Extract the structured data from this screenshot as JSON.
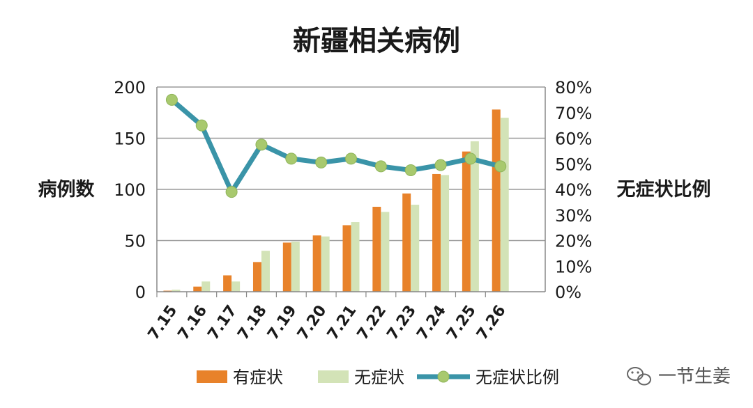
{
  "chart_data": {
    "type": "bar",
    "title": "新疆相关病例",
    "categories": [
      "7.15",
      "7.16",
      "7.17",
      "7.18",
      "7.19",
      "7.20",
      "7.21",
      "7.22",
      "7.23",
      "7.24",
      "7.25",
      "7.26"
    ],
    "series": [
      {
        "name": "有症状",
        "type": "bar",
        "axis": "left",
        "color": "#e8822a",
        "values": [
          1,
          5,
          16,
          29,
          48,
          55,
          65,
          83,
          96,
          115,
          137,
          178
        ]
      },
      {
        "name": "无症状",
        "type": "bar",
        "axis": "left",
        "color": "#d3e3b7",
        "values": [
          2,
          10,
          10,
          40,
          49,
          54,
          68,
          78,
          85,
          114,
          147,
          170
        ]
      },
      {
        "name": "无症状比例",
        "type": "line",
        "axis": "right",
        "color": "#3a94a8",
        "marker_color": "#a8c96e",
        "values": [
          0.75,
          0.65,
          0.39,
          0.575,
          0.52,
          0.505,
          0.52,
          0.49,
          0.475,
          0.495,
          0.52,
          0.49
        ]
      }
    ],
    "ylabel": "病例数",
    "y2label": "无症状比例",
    "ylim": [
      0,
      200
    ],
    "y2lim": [
      0,
      0.8
    ],
    "yticks": [
      "0",
      "50",
      "100",
      "150",
      "200"
    ],
    "y2ticks": [
      "0%",
      "10%",
      "20%",
      "30%",
      "40%",
      "50%",
      "60%",
      "70%",
      "80%"
    ],
    "grid": true,
    "legend_position": "bottom"
  },
  "watermark": {
    "text": "一节生姜",
    "icon": "wechat-icon"
  }
}
